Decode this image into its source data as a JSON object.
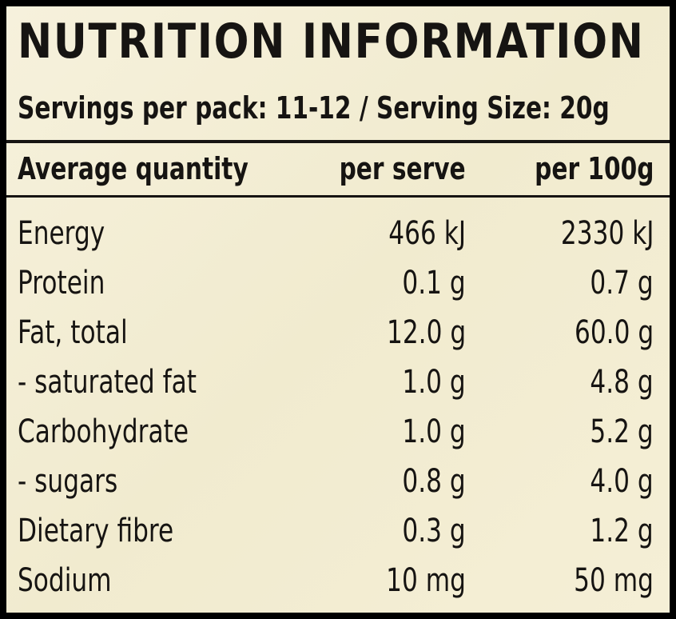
{
  "header": {
    "title": "NUTRITION INFORMATION",
    "subtitle": "Servings per pack: 11-12 / Serving Size: 20g"
  },
  "table": {
    "columns": [
      "Average quantity",
      "per serve",
      "per 100g"
    ],
    "rows": [
      [
        "Energy",
        "466 kJ",
        "2330 kJ"
      ],
      [
        "Protein",
        "0.1 g",
        "0.7 g"
      ],
      [
        "Fat, total",
        "12.0 g",
        "60.0 g"
      ],
      [
        "- saturated fat",
        "1.0 g",
        "4.8 g"
      ],
      [
        "Carbohydrate",
        "1.0 g",
        "5.2 g"
      ],
      [
        "- sugars",
        "0.8 g",
        "4.0 g"
      ],
      [
        "Dietary fibre",
        "0.3 g",
        "1.2 g"
      ],
      [
        "Sodium",
        "10 mg",
        "50 mg"
      ]
    ]
  }
}
